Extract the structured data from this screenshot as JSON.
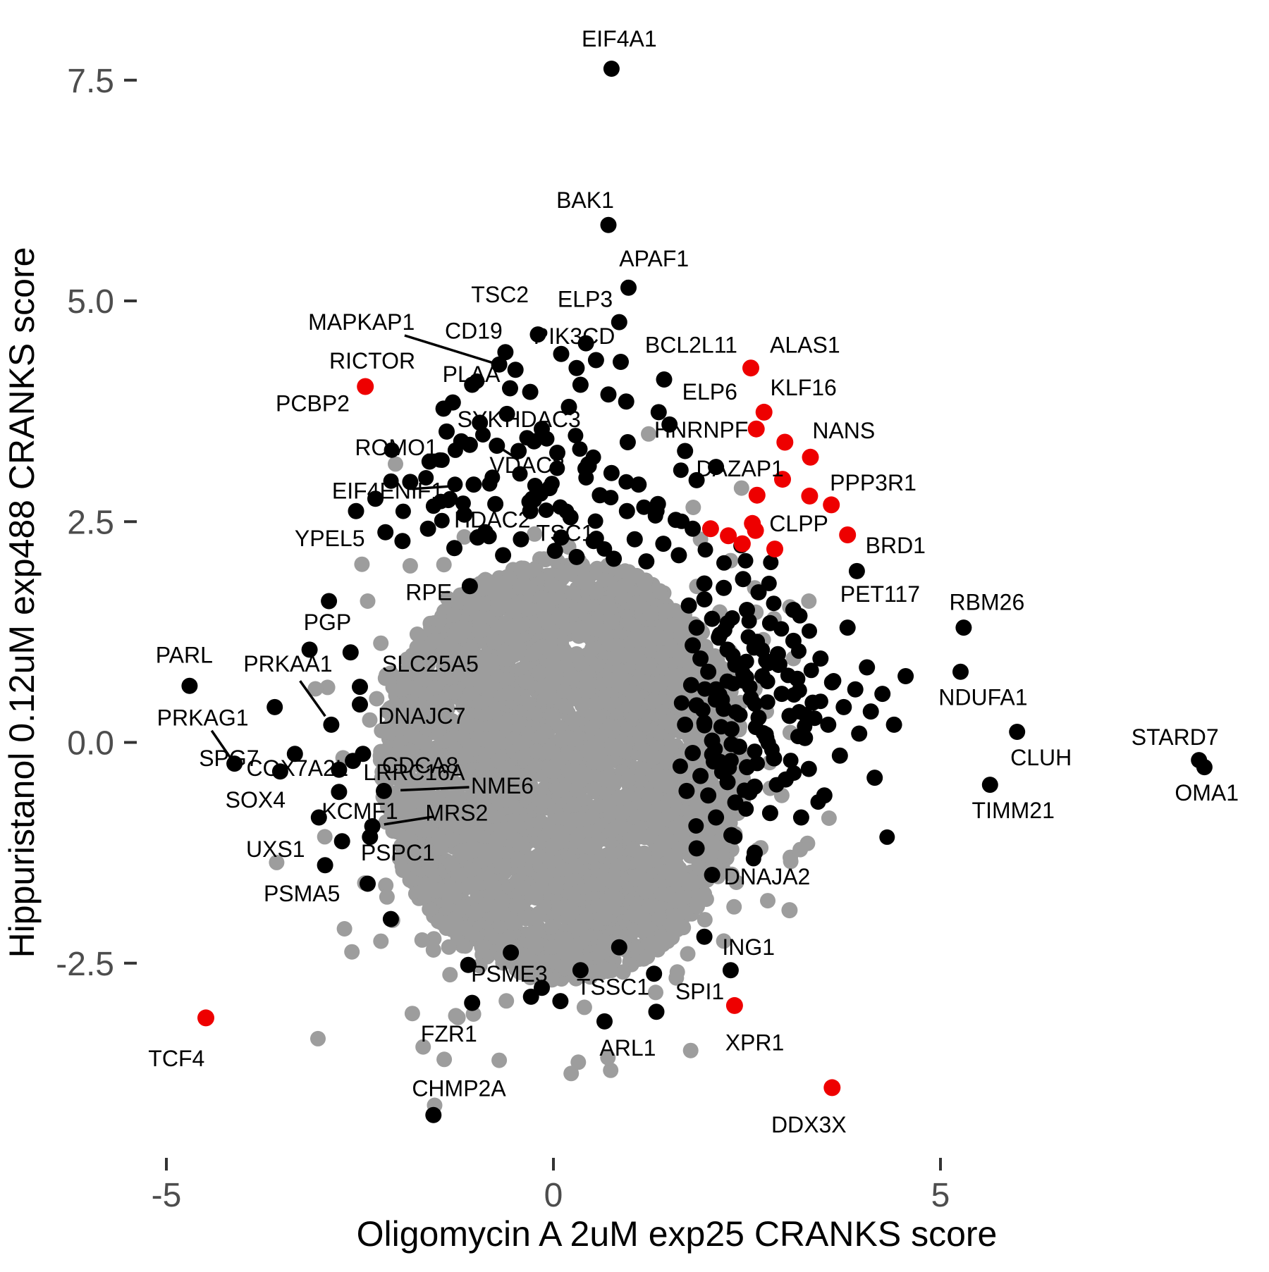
{
  "figure": {
    "x_axis_label": "Oligomycin A 2uM exp25 CRANKS score",
    "y_axis_label": "Hippuristanol 0.12uM exp488 CRANKS score"
  },
  "chart_data": {
    "type": "scatter",
    "title": "",
    "xlabel": "Oligomycin A 2uM exp25 CRANKS score",
    "ylabel": "Hippuristanol 0.12uM exp488 CRANKS score",
    "xlim": [
      -6.6,
      9.25
    ],
    "ylim": [
      -4.75,
      8.2
    ],
    "x_ticks": [
      -5,
      0,
      5
    ],
    "y_ticks": [
      7.5,
      5.0,
      2.5,
      0.0,
      -2.5
    ],
    "grid": false,
    "legend": "none",
    "colors": {
      "background_point": "#9d9d9d",
      "hit_point": "#000000",
      "highlight_point": "#ee0000",
      "axis_text": "#4d4d4d",
      "tick_mark": "#333333"
    },
    "labeled_points": [
      {
        "n": "EIF4A1",
        "x": 0.75,
        "y": 7.63,
        "c": "black",
        "lx": 0.85,
        "ly": 7.97
      },
      {
        "n": "BAK1",
        "x": 0.71,
        "y": 5.86,
        "c": "black",
        "lx": 0.41,
        "ly": 6.14
      },
      {
        "n": "APAF1",
        "x": 0.97,
        "y": 5.15,
        "c": "black",
        "lx": 1.3,
        "ly": 5.48
      },
      {
        "n": "TSC2",
        "x": -0.62,
        "y": 4.42,
        "c": "black",
        "lx": -0.69,
        "ly": 5.07
      },
      {
        "n": "ELP3",
        "x": 0.42,
        "y": 4.52,
        "c": "black",
        "lx": 0.41,
        "ly": 5.02
      },
      {
        "n": "MAPKAP1",
        "x": -0.49,
        "y": 4.22,
        "c": "black",
        "lx": -2.48,
        "ly": 4.76,
        "line": true
      },
      {
        "n": "CD19",
        "x": -0.7,
        "y": 4.28,
        "c": "black",
        "lx": -1.03,
        "ly": 4.66
      },
      {
        "n": "PIK3CD",
        "x": 0.3,
        "y": 4.24,
        "c": "black",
        "lx": 0.27,
        "ly": 4.6
      },
      {
        "n": "BCL2L11",
        "x": 1.43,
        "y": 4.11,
        "c": "black",
        "lx": 1.78,
        "ly": 4.5
      },
      {
        "n": "ALAS1",
        "x": 2.55,
        "y": 4.24,
        "c": "red",
        "lx": 3.25,
        "ly": 4.5
      },
      {
        "n": "RICTOR",
        "x": -2.43,
        "y": 4.03,
        "c": "red",
        "lx": -2.34,
        "ly": 4.32
      },
      {
        "n": "PLAA",
        "x": -0.56,
        "y": 4.01,
        "c": "black",
        "lx": -1.06,
        "ly": 4.17
      },
      {
        "n": "PCBP2",
        "x": -1.42,
        "y": 3.78,
        "c": "black",
        "lx": -3.11,
        "ly": 3.84
      },
      {
        "n": "SYK",
        "x": -1.19,
        "y": 3.41,
        "c": "black",
        "lx": -0.95,
        "ly": 3.66
      },
      {
        "n": "HDAC3",
        "x": -0.25,
        "y": 3.41,
        "c": "black",
        "lx": -0.14,
        "ly": 3.66
      },
      {
        "n": "ELP6",
        "x": 1.36,
        "y": 3.74,
        "c": "black",
        "lx": 2.02,
        "ly": 3.97
      },
      {
        "n": "KLF16",
        "x": 2.72,
        "y": 3.74,
        "c": "red",
        "lx": 3.23,
        "ly": 4.02
      },
      {
        "n": "HNRNPF",
        "x": 2.62,
        "y": 3.55,
        "c": "red",
        "lx": 1.91,
        "ly": 3.54
      },
      {
        "n": "NANS",
        "x": 3.32,
        "y": 3.23,
        "c": "red",
        "lx": 3.75,
        "ly": 3.53
      },
      {
        "n": "ROMO1",
        "x": -1.08,
        "y": 3.37,
        "c": "black",
        "lx": -2.03,
        "ly": 3.34
      },
      {
        "n": "VDAC2",
        "x": -0.73,
        "y": 3.36,
        "c": "black",
        "lx": -0.34,
        "ly": 3.14,
        "line": true
      },
      {
        "n": "EIF4ENIF1",
        "x": -1.03,
        "y": 2.92,
        "c": "black",
        "lx": -2.14,
        "ly": 2.85,
        "line": true
      },
      {
        "n": "HDAC2",
        "x": -0.98,
        "y": 2.32,
        "c": "black",
        "lx": -0.79,
        "ly": 2.52
      },
      {
        "n": "TSC1",
        "x": 0.02,
        "y": 2.17,
        "c": "black",
        "lx": 0.15,
        "ly": 2.37
      },
      {
        "n": "DAZAP1",
        "x": 2.96,
        "y": 2.98,
        "c": "red",
        "lx": 2.41,
        "ly": 3.1
      },
      {
        "n": "PPP3R1",
        "x": 3.59,
        "y": 2.69,
        "c": "red",
        "lx": 4.13,
        "ly": 2.94
      },
      {
        "n": "YPEL5",
        "x": -2.17,
        "y": 2.38,
        "c": "black",
        "lx": -2.89,
        "ly": 2.31
      },
      {
        "n": "CLPP",
        "x": 2.61,
        "y": 2.4,
        "c": "red",
        "lx": 3.17,
        "ly": 2.48
      },
      {
        "n": "BRD1",
        "x": 3.8,
        "y": 2.35,
        "c": "red",
        "lx": 4.42,
        "ly": 2.23
      },
      {
        "n": "RPE",
        "x": -1.08,
        "y": 1.77,
        "c": "black",
        "lx": -1.61,
        "ly": 1.7
      },
      {
        "n": "PET117",
        "x": 3.92,
        "y": 1.94,
        "c": "black",
        "lx": 4.22,
        "ly": 1.68
      },
      {
        "n": "RBM26",
        "x": 5.3,
        "y": 1.3,
        "c": "black",
        "lx": 5.6,
        "ly": 1.59
      },
      {
        "n": "PGP",
        "x": -2.62,
        "y": 1.02,
        "c": "black",
        "lx": -2.92,
        "ly": 1.36
      },
      {
        "n": "PARL",
        "x": -4.7,
        "y": 0.64,
        "c": "black",
        "lx": -4.77,
        "ly": 0.99
      },
      {
        "n": "PRKAA1",
        "x": -2.87,
        "y": 0.2,
        "c": "black",
        "lx": -3.43,
        "ly": 0.89,
        "line": true
      },
      {
        "n": "SLC25A5",
        "x": -2.5,
        "y": 0.63,
        "c": "black",
        "lx": -1.59,
        "ly": 0.89
      },
      {
        "n": "NDUFA1",
        "x": 5.26,
        "y": 0.8,
        "c": "black",
        "lx": 5.55,
        "ly": 0.51
      },
      {
        "n": "PRKAG1",
        "x": -4.12,
        "y": -0.24,
        "c": "black",
        "lx": -4.53,
        "ly": 0.28,
        "line": true
      },
      {
        "n": "DNAJC7",
        "x": -2.5,
        "y": 0.43,
        "c": "black",
        "lx": -1.7,
        "ly": 0.3
      },
      {
        "n": "COX7A2L",
        "x": -2.59,
        "y": -0.21,
        "c": "black",
        "lx": -3.31,
        "ly": -0.29
      },
      {
        "n": "CDCA8",
        "x": -2.46,
        "y": -0.13,
        "c": "black",
        "lx": -1.72,
        "ly": -0.26
      },
      {
        "n": "NME6",
        "x": -2.19,
        "y": -0.55,
        "c": "black",
        "lx": -0.66,
        "ly": -0.49,
        "line": true
      },
      {
        "n": "STARD7",
        "x": 8.34,
        "y": -0.2,
        "c": "black",
        "lx": 8.03,
        "ly": 0.06
      },
      {
        "n": "CLUH",
        "x": 5.99,
        "y": 0.12,
        "c": "black",
        "lx": 6.3,
        "ly": -0.17
      },
      {
        "n": "SPG7",
        "x": -3.53,
        "y": -0.33,
        "c": "black",
        "lx": -4.19,
        "ly": -0.18
      },
      {
        "n": "LRRC16A",
        "x": -2.77,
        "y": -0.31,
        "c": "black",
        "lx": -1.8,
        "ly": -0.34
      },
      {
        "n": "OMA1",
        "x": 8.41,
        "y": -0.28,
        "c": "black",
        "lx": 8.44,
        "ly": -0.57
      },
      {
        "n": "TIMM21",
        "x": 5.64,
        "y": -0.48,
        "c": "black",
        "lx": 5.94,
        "ly": -0.77
      },
      {
        "n": "SOX4",
        "x": -2.77,
        "y": -0.56,
        "c": "black",
        "lx": -3.85,
        "ly": -0.65
      },
      {
        "n": "KCMF1",
        "x": -3.03,
        "y": -0.85,
        "c": "black",
        "lx": -2.5,
        "ly": -0.78
      },
      {
        "n": "MRS2",
        "x": -2.34,
        "y": -0.95,
        "c": "black",
        "lx": -1.25,
        "ly": -0.8,
        "line": true
      },
      {
        "n": "UXS1",
        "x": -2.73,
        "y": -1.12,
        "c": "black",
        "lx": -3.59,
        "ly": -1.21
      },
      {
        "n": "PSPC1",
        "x": -2.37,
        "y": -1.07,
        "c": "black",
        "lx": -2.01,
        "ly": -1.25
      },
      {
        "n": "PSMA5",
        "x": -2.95,
        "y": -1.39,
        "c": "black",
        "lx": -3.25,
        "ly": -1.71
      },
      {
        "n": "DNAJA2",
        "x": 3.05,
        "y": -1.9,
        "c": "gray",
        "lx": 2.76,
        "ly": -1.52
      },
      {
        "n": "ING1",
        "x": 2.29,
        "y": -2.58,
        "c": "black",
        "lx": 2.52,
        "ly": -2.32
      },
      {
        "n": "PSME3",
        "x": -0.29,
        "y": -2.88,
        "c": "black",
        "lx": -0.57,
        "ly": -2.62
      },
      {
        "n": "TSSC1",
        "x": 0.09,
        "y": -2.93,
        "c": "black",
        "lx": 0.77,
        "ly": -2.77
      },
      {
        "n": "SPI1",
        "x": 1.33,
        "y": -3.05,
        "c": "black",
        "lx": 1.89,
        "ly": -2.82
      },
      {
        "n": "FZR1",
        "x": -1.05,
        "y": -2.95,
        "c": "black",
        "lx": -1.35,
        "ly": -3.3
      },
      {
        "n": "ARL1",
        "x": 0.66,
        "y": -3.16,
        "c": "black",
        "lx": 0.96,
        "ly": -3.46
      },
      {
        "n": "XPR1",
        "x": 2.34,
        "y": -2.98,
        "c": "red",
        "lx": 2.6,
        "ly": -3.4
      },
      {
        "n": "TCF4",
        "x": -4.49,
        "y": -3.12,
        "c": "red",
        "lx": -4.87,
        "ly": -3.58
      },
      {
        "n": "CHMP2A",
        "x": -1.55,
        "y": -4.22,
        "c": "black",
        "lx": -1.22,
        "ly": -3.92
      },
      {
        "n": "DDX3X",
        "x": 3.6,
        "y": -3.91,
        "c": "red",
        "lx": 3.3,
        "ly": -4.33
      }
    ],
    "unlabeled_points": {
      "red": [
        [
          2.03,
          2.42
        ],
        [
          2.26,
          2.34
        ],
        [
          2.44,
          2.25
        ],
        [
          2.86,
          2.19
        ],
        [
          2.57,
          2.48
        ],
        [
          3.31,
          2.79
        ],
        [
          2.63,
          2.8
        ],
        [
          2.99,
          3.4
        ]
      ],
      "gray": [
        [
          2.2,
          -2.25
        ],
        [
          1.6,
          -2.6
        ],
        [
          -1.55,
          -2.35
        ],
        [
          0.4,
          -3.0
        ],
        [
          -0.7,
          -3.6
        ],
        [
          2.43,
          2.88
        ],
        [
          -1.85,
          2.0
        ],
        [
          1.9,
          2.3
        ],
        [
          2.6,
          1.75
        ],
        [
          2.85,
          1.4
        ],
        [
          3.1,
          0.95
        ],
        [
          -2.4,
          1.6
        ],
        [
          -2.15,
          -1.75
        ],
        [
          0.9,
          -2.6
        ],
        [
          -0.35,
          -2.45
        ],
        [
          2.75,
          0.35
        ],
        [
          2.95,
          -0.6
        ],
        [
          3.3,
          1.6
        ]
      ],
      "black": [
        [
          0.85,
          4.76
        ],
        [
          0.87,
          4.31
        ],
        [
          0.71,
          3.94
        ],
        [
          0.94,
          3.86
        ],
        [
          1.5,
          3.6
        ],
        [
          0.96,
          3.4
        ],
        [
          -0.2,
          4.62
        ],
        [
          0.1,
          4.4
        ],
        [
          0.55,
          4.33
        ],
        [
          -0.3,
          3.97
        ],
        [
          0.2,
          3.8
        ],
        [
          -0.6,
          3.72
        ],
        [
          -1.6,
          3.18
        ],
        [
          -1.85,
          2.95
        ],
        [
          -2.3,
          2.76
        ],
        [
          0.45,
          3.15
        ],
        [
          0.75,
          3.05
        ],
        [
          1.1,
          2.92
        ],
        [
          1.7,
          3.3
        ],
        [
          1.85,
          2.97
        ],
        [
          2.1,
          3.12
        ],
        [
          -0.15,
          3.55
        ],
        [
          -0.95,
          3.62
        ],
        [
          -1.38,
          3.52
        ],
        [
          -0.45,
          3.3
        ],
        [
          0.05,
          3.28
        ],
        [
          0.6,
          2.8
        ],
        [
          -0.75,
          2.7
        ],
        [
          -1.15,
          2.58
        ],
        [
          -0.3,
          2.62
        ],
        [
          0.22,
          2.55
        ],
        [
          0.95,
          2.62
        ],
        [
          1.35,
          2.7
        ],
        [
          1.58,
          2.52
        ],
        [
          -1.62,
          2.42
        ],
        [
          -1.95,
          2.28
        ],
        [
          -0.88,
          2.38
        ],
        [
          -0.42,
          2.3
        ],
        [
          0.1,
          2.32
        ],
        [
          0.52,
          2.28
        ],
        [
          1.05,
          2.3
        ],
        [
          1.42,
          2.25
        ],
        [
          1.8,
          2.42
        ],
        [
          -1.28,
          2.2
        ],
        [
          -0.65,
          2.12
        ],
        [
          0.3,
          2.1
        ],
        [
          0.78,
          2.08
        ],
        [
          1.2,
          2.05
        ],
        [
          1.62,
          2.12
        ],
        [
          -2.55,
          2.62
        ],
        [
          -0.05,
          2.88
        ],
        [
          0.35,
          4.05
        ],
        [
          -1.05,
          4.05
        ],
        [
          -1.3,
          3.85
        ],
        [
          1.75,
          1.55
        ],
        [
          1.85,
          1.3
        ],
        [
          1.95,
          1.62
        ],
        [
          2.05,
          1.4
        ],
        [
          1.8,
          1.1
        ],
        [
          2.15,
          1.22
        ],
        [
          1.9,
          0.95
        ],
        [
          2.25,
          1.05
        ],
        [
          2.0,
          0.8
        ],
        [
          1.78,
          0.65
        ],
        [
          2.35,
          0.88
        ],
        [
          2.1,
          0.6
        ],
        [
          1.85,
          0.42
        ],
        [
          2.45,
          0.7
        ],
        [
          2.2,
          0.38
        ],
        [
          1.95,
          0.22
        ],
        [
          2.55,
          0.5
        ],
        [
          2.3,
          0.15
        ],
        [
          2.05,
          0.02
        ],
        [
          1.8,
          -0.12
        ],
        [
          2.65,
          0.28
        ],
        [
          2.4,
          -0.05
        ],
        [
          2.15,
          -0.22
        ],
        [
          1.9,
          -0.38
        ],
        [
          2.75,
          0.05
        ],
        [
          2.5,
          -0.28
        ],
        [
          2.25,
          -0.45
        ],
        [
          2.0,
          -0.6
        ],
        [
          2.85,
          -0.18
        ],
        [
          2.6,
          -0.5
        ],
        [
          2.35,
          -0.68
        ],
        [
          2.1,
          -0.85
        ],
        [
          2.95,
          0.55
        ],
        [
          2.7,
          0.75
        ],
        [
          2.9,
          1.0
        ],
        [
          3.05,
          0.3
        ],
        [
          3.15,
          0.72
        ],
        [
          3.0,
          -0.42
        ],
        [
          3.25,
          0.05
        ],
        [
          3.1,
          1.15
        ],
        [
          3.35,
          0.45
        ],
        [
          3.45,
          0.95
        ],
        [
          3.3,
          -0.3
        ],
        [
          3.55,
          0.2
        ],
        [
          3.6,
          0.68
        ],
        [
          3.75,
          0.4
        ],
        [
          3.7,
          -0.15
        ],
        [
          3.9,
          0.6
        ],
        [
          3.95,
          0.1
        ],
        [
          4.1,
          0.35
        ],
        [
          4.05,
          0.85
        ],
        [
          4.25,
          0.55
        ],
        [
          2.2,
          1.75
        ],
        [
          2.5,
          1.5
        ],
        [
          2.8,
          1.35
        ],
        [
          3.1,
          1.5
        ],
        [
          2.45,
          1.85
        ],
        [
          1.7,
          0.2
        ],
        [
          1.72,
          -0.55
        ],
        [
          1.95,
          1.8
        ],
        [
          2.65,
          1.7
        ],
        [
          4.4,
          0.2
        ],
        [
          4.15,
          -0.4
        ],
        [
          3.5,
          -0.6
        ],
        [
          2.8,
          -0.8
        ],
        [
          2.3,
          -1.05
        ],
        [
          1.85,
          -1.2
        ],
        [
          3.2,
          -0.85
        ],
        [
          2.6,
          -1.25
        ],
        [
          2.05,
          -1.5
        ],
        [
          3.8,
          1.3
        ],
        [
          4.55,
          0.75
        ],
        [
          -3.34,
          -0.13
        ],
        [
          -3.6,
          0.4
        ],
        [
          -2.9,
          1.6
        ],
        [
          -3.15,
          1.05
        ],
        [
          -0.55,
          -2.38
        ],
        [
          0.35,
          -2.58
        ],
        [
          -1.1,
          -2.52
        ],
        [
          0.85,
          -2.32
        ],
        [
          -0.15,
          -2.78
        ],
        [
          1.3,
          -2.62
        ],
        [
          1.95,
          -2.2
        ],
        [
          -2.4,
          -1.6
        ],
        [
          -2.1,
          -2.0
        ]
      ]
    },
    "background_cloud": {
      "seed": 7,
      "clusters": [
        {
          "shape": "disk",
          "cx": 0.12,
          "cy": -0.3,
          "rx": 2.36,
          "ry": 2.4,
          "count": 3300,
          "color": "gray"
        },
        {
          "shape": "gauss",
          "cx": 0.0,
          "cy": -0.3,
          "sx": 1.3,
          "sy": 1.25,
          "count": 420,
          "color": "gray"
        },
        {
          "shape": "gauss",
          "cx": 2.5,
          "cy": 0.45,
          "sx": 0.55,
          "sy": 0.8,
          "count": 90,
          "color": "black",
          "clip_x_min": 1.62
        },
        {
          "shape": "gauss",
          "cx": -0.4,
          "cy": 2.75,
          "sx": 1.05,
          "sy": 0.5,
          "count": 60,
          "color": "black",
          "clip_y_min": 2.08,
          "clip_x_max": 2.2
        }
      ]
    }
  }
}
